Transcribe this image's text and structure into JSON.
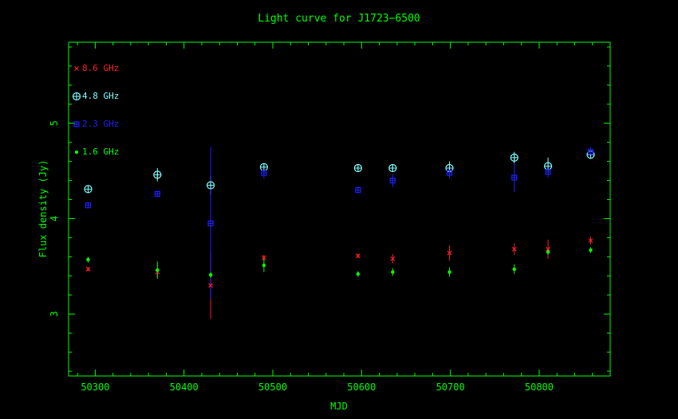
{
  "colors": {
    "axis": "#00ff00",
    "title": "#00ff00",
    "f86": "#ff2020",
    "f48": "#7fffff",
    "f23": "#2020ff",
    "f16": "#00ff00"
  },
  "chart_data": {
    "type": "scatter",
    "title": "Light curve for J1723−6500",
    "xlabel": "MJD",
    "ylabel": "Flux density (Jy)",
    "xlim": [
      50270,
      50880
    ],
    "ylim": [
      2.35,
      5.85
    ],
    "x_ticks": [
      50300,
      50400,
      50500,
      50600,
      50700,
      50800
    ],
    "y_ticks": [
      3,
      4,
      5
    ],
    "grid": false,
    "legend_position": "top-left",
    "series": [
      {
        "name": "8.6 GHz",
        "marker": "cross",
        "color_key": "f86",
        "x": [
          50292,
          50370,
          50430,
          50490,
          50596,
          50635,
          50699,
          50772,
          50810,
          50858
        ],
        "y": [
          3.47,
          3.44,
          3.3,
          3.59,
          3.61,
          3.58,
          3.64,
          3.68,
          3.68,
          3.77
        ],
        "err": [
          0.02,
          0.05,
          0.35,
          0.03,
          0.02,
          0.05,
          0.08,
          0.06,
          0.1,
          0.04
        ]
      },
      {
        "name": "4.8 GHz",
        "marker": "circle-plus",
        "color_key": "f48",
        "x": [
          50292,
          50370,
          50430,
          50490,
          50596,
          50635,
          50699,
          50772,
          50810,
          50858
        ],
        "y": [
          4.31,
          4.46,
          4.35,
          4.54,
          4.53,
          4.53,
          4.53,
          4.64,
          4.55,
          4.67
        ],
        "err": [
          0.02,
          0.07,
          0.1,
          0.04,
          0.02,
          0.03,
          0.07,
          0.06,
          0.09,
          0.04
        ]
      },
      {
        "name": "2.3 GHz",
        "marker": "square",
        "color_key": "f23",
        "x": [
          50292,
          50370,
          50430,
          50490,
          50596,
          50635,
          50699,
          50772,
          50810,
          50858
        ],
        "y": [
          4.14,
          4.26,
          3.95,
          4.48,
          4.3,
          4.4,
          4.48,
          4.43,
          4.49,
          4.7
        ],
        "err": [
          0.02,
          0.02,
          0.8,
          0.06,
          0.02,
          0.07,
          0.06,
          0.15,
          0.06,
          0.05
        ]
      },
      {
        "name": "1.6 GHz",
        "marker": "dot",
        "color_key": "f16",
        "x": [
          50292,
          50370,
          50430,
          50490,
          50596,
          50635,
          50699,
          50772,
          50810,
          50858
        ],
        "y": [
          3.57,
          3.46,
          3.41,
          3.51,
          3.42,
          3.44,
          3.44,
          3.47,
          3.65,
          3.67
        ],
        "err": [
          0.03,
          0.09,
          0.03,
          0.07,
          0.03,
          0.04,
          0.05,
          0.05,
          0.03,
          0.03
        ]
      }
    ]
  }
}
